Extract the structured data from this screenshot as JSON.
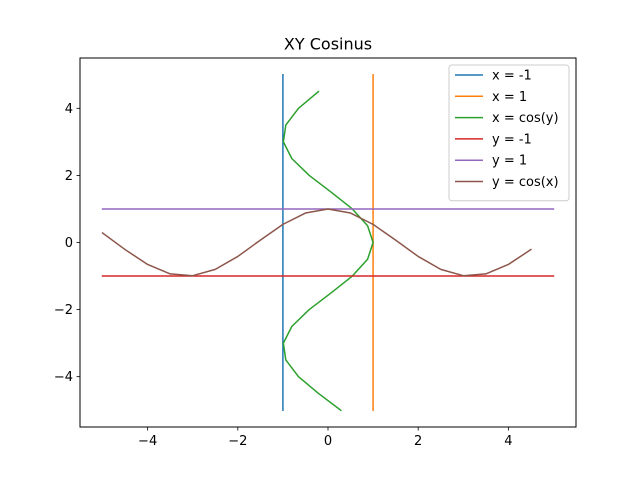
{
  "chart_data": {
    "type": "line",
    "title": "XY Cosinus",
    "xlabel": "",
    "ylabel": "",
    "xlim": [
      -5.5,
      5.5
    ],
    "ylim": [
      -5.5,
      5.5
    ],
    "xticks": [
      -4,
      -2,
      0,
      2,
      4
    ],
    "yticks": [
      -4,
      -2,
      0,
      2,
      4
    ],
    "xtick_labels": [
      "−4",
      "−2",
      "0",
      "2",
      "4"
    ],
    "ytick_labels": [
      "−4",
      "−2",
      "0",
      "2",
      "4"
    ],
    "grid": false,
    "legend_position": "top-right",
    "series": [
      {
        "name": "x = -1",
        "color": "#1f77b4",
        "x": [
          -1,
          -1
        ],
        "y": [
          -5,
          5
        ]
      },
      {
        "name": "x = 1",
        "color": "#ff7f0e",
        "x": [
          1,
          1
        ],
        "y": [
          -5,
          5
        ]
      },
      {
        "name": "x = cos(y)",
        "color": "#2ca02c",
        "x": [
          0.284,
          -0.211,
          -0.654,
          -0.936,
          -0.99,
          -0.801,
          -0.416,
          0.071,
          0.54,
          0.878,
          1.0,
          0.878,
          0.54,
          0.071,
          -0.416,
          -0.801,
          -0.99,
          -0.936,
          -0.654,
          -0.211
        ],
        "y": [
          -5.0,
          -4.5,
          -4.0,
          -3.5,
          -3.0,
          -2.5,
          -2.0,
          -1.5,
          -1.0,
          -0.5,
          0.0,
          0.5,
          1.0,
          1.5,
          2.0,
          2.5,
          3.0,
          3.5,
          4.0,
          4.5
        ]
      },
      {
        "name": "y = -1",
        "color": "#d62728",
        "x": [
          -5,
          5
        ],
        "y": [
          -1,
          -1
        ]
      },
      {
        "name": "y = 1",
        "color": "#9467bd",
        "x": [
          -5,
          5
        ],
        "y": [
          1,
          1
        ]
      },
      {
        "name": "y = cos(x)",
        "color": "#8c564b",
        "x": [
          -5.0,
          -4.5,
          -4.0,
          -3.5,
          -3.0,
          -2.5,
          -2.0,
          -1.5,
          -1.0,
          -0.5,
          0.0,
          0.5,
          1.0,
          1.5,
          2.0,
          2.5,
          3.0,
          3.5,
          4.0,
          4.5
        ],
        "y": [
          0.284,
          -0.211,
          -0.654,
          -0.936,
          -0.99,
          -0.801,
          -0.416,
          0.071,
          0.54,
          0.878,
          1.0,
          0.878,
          0.54,
          0.071,
          -0.416,
          -0.801,
          -0.99,
          -0.936,
          -0.654,
          -0.211
        ]
      }
    ]
  }
}
